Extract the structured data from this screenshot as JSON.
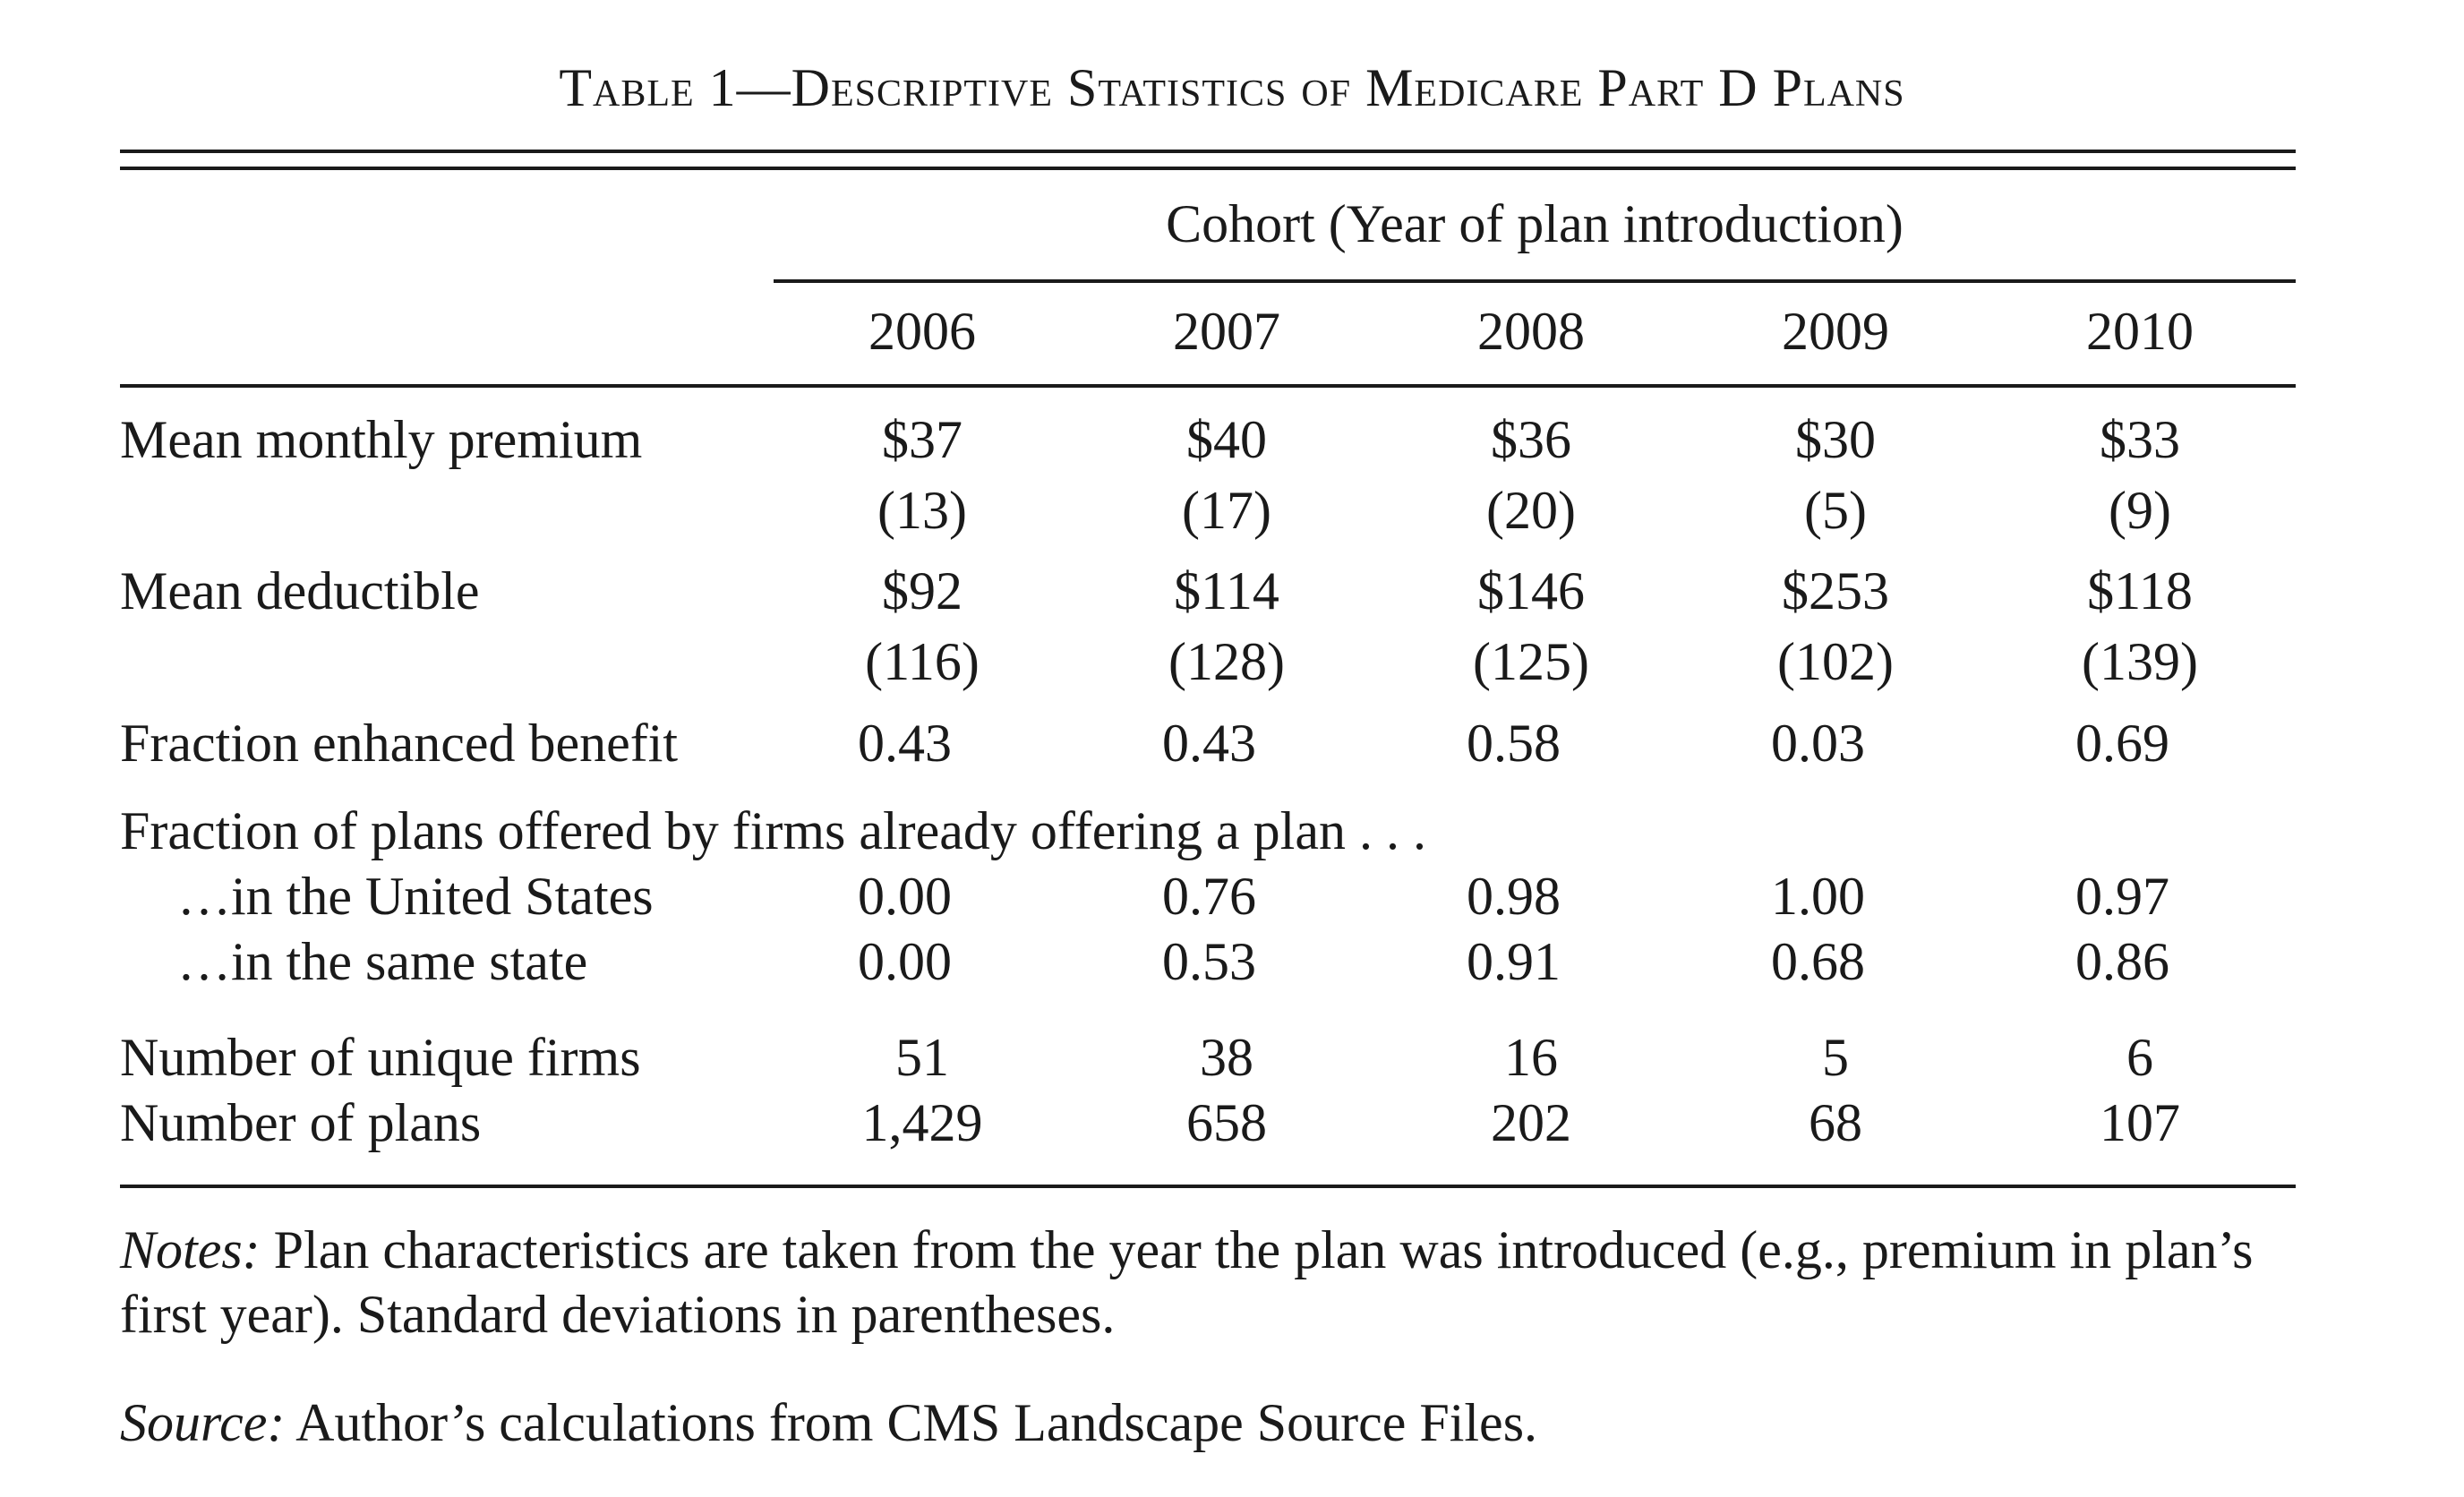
{
  "table": {
    "title": "Table 1—Descriptive Statistics of Medicare Part D Plans",
    "group_header": "Cohort (Year of plan introduction)",
    "years": [
      "2006",
      "2007",
      "2008",
      "2009",
      "2010"
    ],
    "rows": {
      "premium": {
        "label": "Mean monthly premium",
        "values": [
          "$37",
          "$40",
          "$36",
          "$30",
          "$33"
        ],
        "sd": [
          "(13)",
          "(17)",
          "(20)",
          "(5)",
          "(9)"
        ]
      },
      "deductible": {
        "label": "Mean deductible",
        "values": [
          "$92",
          "$114",
          "$146",
          "$253",
          "$118"
        ],
        "sd": [
          "(116)",
          "(128)",
          "(125)",
          "(102)",
          "(139)"
        ]
      },
      "enhanced": {
        "label": "Fraction enhanced benefit",
        "values": [
          "0.43",
          "0.43",
          "0.58",
          "0.03",
          "0.69"
        ]
      },
      "fraction_header": {
        "label": "Fraction of plans offered by firms already offering a plan . . ."
      },
      "us": {
        "label": "…in the United States",
        "values": [
          "0.00",
          "0.76",
          "0.98",
          "1.00",
          "0.97"
        ]
      },
      "state": {
        "label": "…in the same state",
        "values": [
          "0.00",
          "0.53",
          "0.91",
          "0.68",
          "0.86"
        ]
      },
      "firms": {
        "label": "Number of unique firms",
        "values": [
          "51",
          "38",
          "16",
          "5",
          "6"
        ]
      },
      "plans": {
        "label": "Number of plans",
        "values": [
          "1,429",
          "658",
          "202",
          "68",
          "107"
        ]
      }
    },
    "notes": {
      "lead": "Notes:",
      "text": " Plan characteristics are taken from the year the plan was introduced (e.g., premium in plan’s first year). Standard deviations in parentheses."
    },
    "source": {
      "lead": "Source:",
      "text": " Author’s calculations from CMS Landscape Source Files."
    }
  }
}
